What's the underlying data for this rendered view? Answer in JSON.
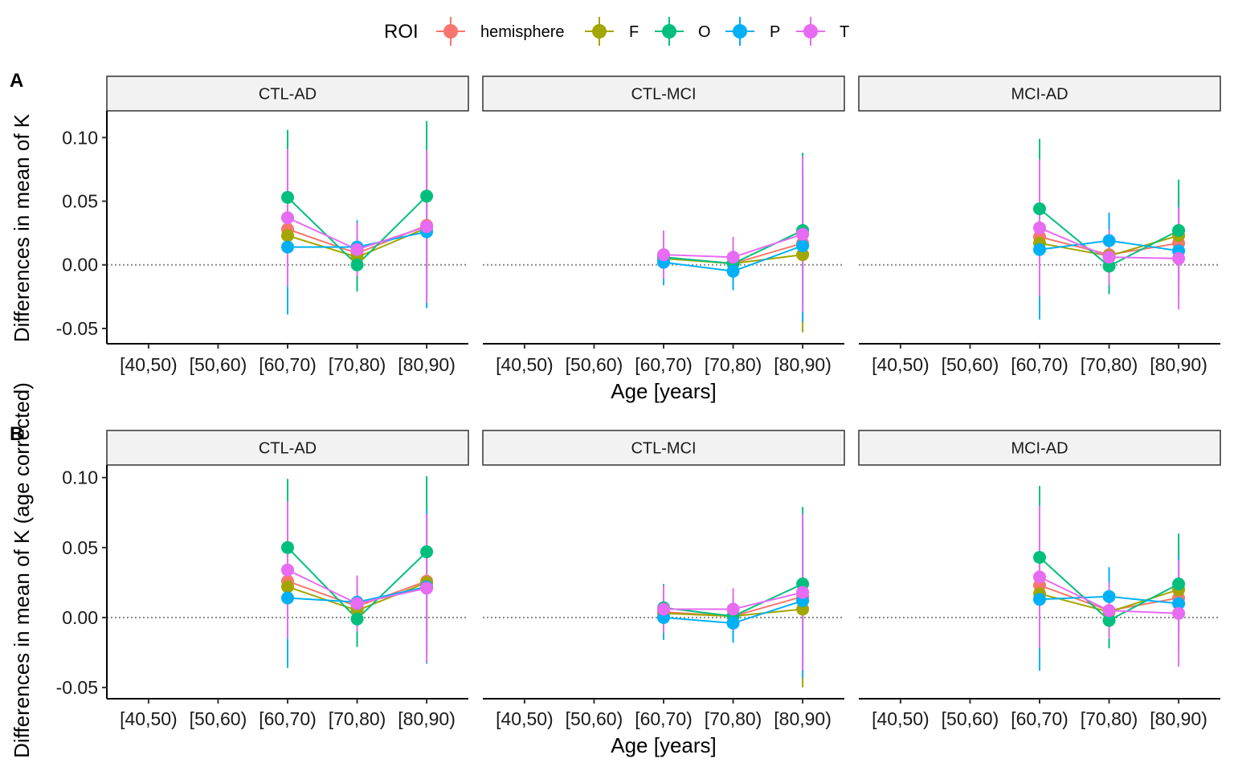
{
  "legend": {
    "title": "ROI",
    "entries": [
      {
        "name": "hemisphere",
        "color": "#F8766D"
      },
      {
        "name": "F",
        "color": "#A3A500"
      },
      {
        "name": "O",
        "color": "#00BF7D"
      },
      {
        "name": "P",
        "color": "#00B0F6"
      },
      {
        "name": "T",
        "color": "#E76BF3"
      }
    ]
  },
  "chart_data": [
    {
      "type": "line",
      "tag": "A",
      "ylabel": "Differences in mean of K",
      "xlabel": "Age [years]",
      "categories": [
        "[40,50)",
        "[50,60)",
        "[60,70)",
        "[70,80)",
        "[80,90)"
      ],
      "ylim": [
        -0.062,
        0.121
      ],
      "yticks": [
        -0.05,
        0.0,
        0.05,
        0.1
      ],
      "ytick_labels": [
        "-0.05",
        "0.00",
        "0.05",
        "0.10"
      ],
      "reference_line": 0,
      "facets": [
        {
          "label": "CTL-AD",
          "series": [
            {
              "name": "hemisphere",
              "values": [
                null,
                null,
                0.028,
                0.009,
                0.031
              ],
              "lower": [
                null,
                null,
                -0.015,
                -0.004,
                -0.028
              ],
              "upper": [
                null,
                null,
                0.071,
                0.022,
                0.09
              ]
            },
            {
              "name": "F",
              "values": [
                null,
                null,
                0.023,
                0.006,
                0.029
              ],
              "lower": [
                null,
                null,
                -0.015,
                -0.01,
                -0.025
              ],
              "upper": [
                null,
                null,
                0.061,
                0.022,
                0.083
              ]
            },
            {
              "name": "O",
              "values": [
                null,
                null,
                0.053,
                0.0,
                0.054
              ],
              "lower": [
                null,
                null,
                0.0,
                -0.021,
                -0.005
              ],
              "upper": [
                null,
                null,
                0.106,
                0.021,
                0.113
              ]
            },
            {
              "name": "P",
              "values": [
                null,
                null,
                0.014,
                0.014,
                0.026
              ],
              "lower": [
                null,
                null,
                -0.039,
                -0.007,
                -0.034
              ],
              "upper": [
                null,
                null,
                0.067,
                0.035,
                0.086
              ]
            },
            {
              "name": "T",
              "values": [
                null,
                null,
                0.037,
                0.012,
                0.03
              ],
              "lower": [
                null,
                null,
                -0.017,
                -0.009,
                -0.03
              ],
              "upper": [
                null,
                null,
                0.091,
                0.033,
                0.09
              ]
            }
          ]
        },
        {
          "label": "CTL-MCI",
          "series": [
            {
              "name": "hemisphere",
              "values": [
                null,
                null,
                0.006,
                0.001,
                0.017
              ],
              "lower": [
                null,
                null,
                -0.01,
                -0.012,
                -0.04
              ],
              "upper": [
                null,
                null,
                0.022,
                0.014,
                0.074
              ]
            },
            {
              "name": "F",
              "values": [
                null,
                null,
                0.005,
                0.001,
                0.008
              ],
              "lower": [
                null,
                null,
                -0.011,
                -0.012,
                -0.053
              ],
              "upper": [
                null,
                null,
                0.021,
                0.014,
                0.069
              ]
            },
            {
              "name": "O",
              "values": [
                null,
                null,
                0.006,
                0.001,
                0.027
              ],
              "lower": [
                null,
                null,
                -0.012,
                -0.012,
                -0.034
              ],
              "upper": [
                null,
                null,
                0.024,
                0.014,
                0.088
              ]
            },
            {
              "name": "P",
              "values": [
                null,
                null,
                0.002,
                -0.005,
                0.015
              ],
              "lower": [
                null,
                null,
                -0.016,
                -0.02,
                -0.045
              ],
              "upper": [
                null,
                null,
                0.02,
                0.01,
                0.075
              ]
            },
            {
              "name": "T",
              "values": [
                null,
                null,
                0.008,
                0.006,
                0.024
              ],
              "lower": [
                null,
                null,
                -0.011,
                -0.01,
                -0.037
              ],
              "upper": [
                null,
                null,
                0.027,
                0.022,
                0.085
              ]
            }
          ]
        },
        {
          "label": "MCI-AD",
          "series": [
            {
              "name": "hemisphere",
              "values": [
                null,
                null,
                0.022,
                0.008,
                0.017
              ],
              "lower": [
                null,
                null,
                -0.015,
                -0.005,
                -0.015
              ],
              "upper": [
                null,
                null,
                0.059,
                0.021,
                0.049
              ]
            },
            {
              "name": "F",
              "values": [
                null,
                null,
                0.017,
                0.007,
                0.023
              ],
              "lower": [
                null,
                null,
                -0.018,
                -0.006,
                -0.01
              ],
              "upper": [
                null,
                null,
                0.052,
                0.02,
                0.056
              ]
            },
            {
              "name": "O",
              "values": [
                null,
                null,
                0.044,
                -0.001,
                0.027
              ],
              "lower": [
                null,
                null,
                -0.011,
                -0.023,
                -0.013
              ],
              "upper": [
                null,
                null,
                0.099,
                0.021,
                0.067
              ]
            },
            {
              "name": "P",
              "values": [
                null,
                null,
                0.012,
                0.019,
                0.011
              ],
              "lower": [
                null,
                null,
                -0.043,
                -0.003,
                -0.025
              ],
              "upper": [
                null,
                null,
                0.067,
                0.041,
                0.047
              ]
            },
            {
              "name": "T",
              "values": [
                null,
                null,
                0.029,
                0.006,
                0.005
              ],
              "lower": [
                null,
                null,
                -0.025,
                -0.016,
                -0.035
              ],
              "upper": [
                null,
                null,
                0.083,
                0.028,
                0.045
              ]
            }
          ]
        }
      ]
    },
    {
      "type": "line",
      "tag": "B",
      "ylabel": "Differences in mean of K (age corrected)",
      "xlabel": "Age [years]",
      "categories": [
        "[40,50)",
        "[50,60)",
        "[60,70)",
        "[70,80)",
        "[80,90)"
      ],
      "ylim": [
        -0.058,
        0.109
      ],
      "yticks": [
        -0.05,
        0.0,
        0.05,
        0.1
      ],
      "ytick_labels": [
        "-0.05",
        "0.00",
        "0.05",
        "0.10"
      ],
      "reference_line": 0,
      "facets": [
        {
          "label": "CTL-AD",
          "series": [
            {
              "name": "hemisphere",
              "values": [
                null,
                null,
                0.026,
                0.008,
                0.026
              ],
              "lower": [
                null,
                null,
                -0.014,
                -0.005,
                -0.026
              ],
              "upper": [
                null,
                null,
                0.066,
                0.021,
                0.078
              ]
            },
            {
              "name": "F",
              "values": [
                null,
                null,
                0.022,
                0.005,
                0.025
              ],
              "lower": [
                null,
                null,
                -0.015,
                -0.011,
                -0.025
              ],
              "upper": [
                null,
                null,
                0.059,
                0.021,
                0.075
              ]
            },
            {
              "name": "O",
              "values": [
                null,
                null,
                0.05,
                -0.001,
                0.047
              ],
              "lower": [
                null,
                null,
                0.001,
                -0.021,
                -0.007
              ],
              "upper": [
                null,
                null,
                0.099,
                0.019,
                0.101
              ]
            },
            {
              "name": "P",
              "values": [
                null,
                null,
                0.014,
                0.011,
                0.022
              ],
              "lower": [
                null,
                null,
                -0.036,
                -0.008,
                -0.033
              ],
              "upper": [
                null,
                null,
                0.064,
                0.03,
                0.077
              ]
            },
            {
              "name": "T",
              "values": [
                null,
                null,
                0.034,
                0.01,
                0.021
              ],
              "lower": [
                null,
                null,
                -0.015,
                -0.01,
                -0.032
              ],
              "upper": [
                null,
                null,
                0.083,
                0.03,
                0.074
              ]
            }
          ]
        },
        {
          "label": "CTL-MCI",
          "series": [
            {
              "name": "hemisphere",
              "values": [
                null,
                null,
                0.004,
                0.001,
                0.015
              ],
              "lower": [
                null,
                null,
                -0.011,
                -0.012,
                -0.04
              ],
              "upper": [
                null,
                null,
                0.019,
                0.014,
                0.07
              ]
            },
            {
              "name": "F",
              "values": [
                null,
                null,
                0.003,
                0.001,
                0.006
              ],
              "lower": [
                null,
                null,
                -0.012,
                -0.012,
                -0.05
              ],
              "upper": [
                null,
                null,
                0.018,
                0.014,
                0.062
              ]
            },
            {
              "name": "O",
              "values": [
                null,
                null,
                0.007,
                0.001,
                0.024
              ],
              "lower": [
                null,
                null,
                -0.01,
                -0.012,
                -0.031
              ],
              "upper": [
                null,
                null,
                0.024,
                0.014,
                0.079
              ]
            },
            {
              "name": "P",
              "values": [
                null,
                null,
                0.0,
                -0.004,
                0.012
              ],
              "lower": [
                null,
                null,
                -0.016,
                -0.018,
                -0.043
              ],
              "upper": [
                null,
                null,
                0.016,
                0.01,
                0.067
              ]
            },
            {
              "name": "T",
              "values": [
                null,
                null,
                0.006,
                0.006,
                0.018
              ],
              "lower": [
                null,
                null,
                -0.011,
                -0.009,
                -0.038
              ],
              "upper": [
                null,
                null,
                0.023,
                0.021,
                0.074
              ]
            }
          ]
        },
        {
          "label": "MCI-AD",
          "series": [
            {
              "name": "hemisphere",
              "values": [
                null,
                null,
                0.023,
                0.005,
                0.014
              ],
              "lower": [
                null,
                null,
                -0.013,
                -0.007,
                -0.016
              ],
              "upper": [
                null,
                null,
                0.059,
                0.017,
                0.044
              ]
            },
            {
              "name": "F",
              "values": [
                null,
                null,
                0.017,
                0.004,
                0.02
              ],
              "lower": [
                null,
                null,
                -0.016,
                -0.009,
                -0.011
              ],
              "upper": [
                null,
                null,
                0.05,
                0.017,
                0.051
              ]
            },
            {
              "name": "O",
              "values": [
                null,
                null,
                0.043,
                -0.002,
                0.024
              ],
              "lower": [
                null,
                null,
                -0.008,
                -0.022,
                -0.012
              ],
              "upper": [
                null,
                null,
                0.094,
                0.018,
                0.06
              ]
            },
            {
              "name": "P",
              "values": [
                null,
                null,
                0.013,
                0.015,
                0.01
              ],
              "lower": [
                null,
                null,
                -0.038,
                -0.006,
                -0.025
              ],
              "upper": [
                null,
                null,
                0.064,
                0.036,
                0.045
              ]
            },
            {
              "name": "T",
              "values": [
                null,
                null,
                0.029,
                0.005,
                0.003
              ],
              "lower": [
                null,
                null,
                -0.022,
                -0.015,
                -0.035
              ],
              "upper": [
                null,
                null,
                0.08,
                0.025,
                0.041
              ]
            }
          ]
        }
      ]
    }
  ]
}
